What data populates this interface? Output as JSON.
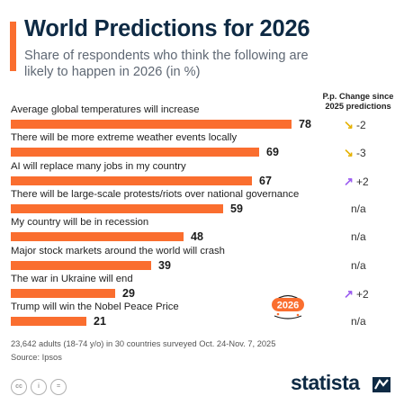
{
  "header": {
    "title": "World Predictions for 2026",
    "subtitle": "Share of respondents who think the following are likely to happen in 2026 (in %)",
    "change_column_label": "P.p. Change since 2025 predictions"
  },
  "chart_data": {
    "type": "bar",
    "orientation": "horizontal",
    "title": "World Predictions for 2026",
    "subtitle": "Share of respondents who think the following are likely to happen in 2026 (in %)",
    "categories": [
      "Average global temperatures will increase",
      "There will be more extreme weather events locally",
      "AI will replace many jobs in my country",
      "There will be large-scale protests/riots over national governance",
      "My country will be in recession",
      "Major stock markets around the world will crash",
      "The war in Ukraine will end",
      "Trump will win the Nobel Peace Price"
    ],
    "values": [
      78,
      69,
      67,
      59,
      48,
      39,
      29,
      21
    ],
    "changes": [
      "-2",
      "-3",
      "+2",
      "n/a",
      "n/a",
      "n/a",
      "+2",
      "n/a"
    ],
    "change_directions": [
      "down",
      "down",
      "up",
      "none",
      "none",
      "none",
      "up",
      "none"
    ],
    "xlim": [
      0,
      100
    ],
    "grid": false,
    "bar_color": "#fa6e2f",
    "down_arrow_color": "#e5b100",
    "up_arrow_color": "#9b5cf0"
  },
  "badge": {
    "text": "2026"
  },
  "footer": {
    "note": "23,642 adults (18-74 y/o) in 30 countries surveyed Oct. 24-Nov. 7, 2025",
    "source": "Source: Ipsos",
    "brand": "statista",
    "license_icons": [
      "cc-icon",
      "by-icon",
      "nd-icon"
    ]
  }
}
